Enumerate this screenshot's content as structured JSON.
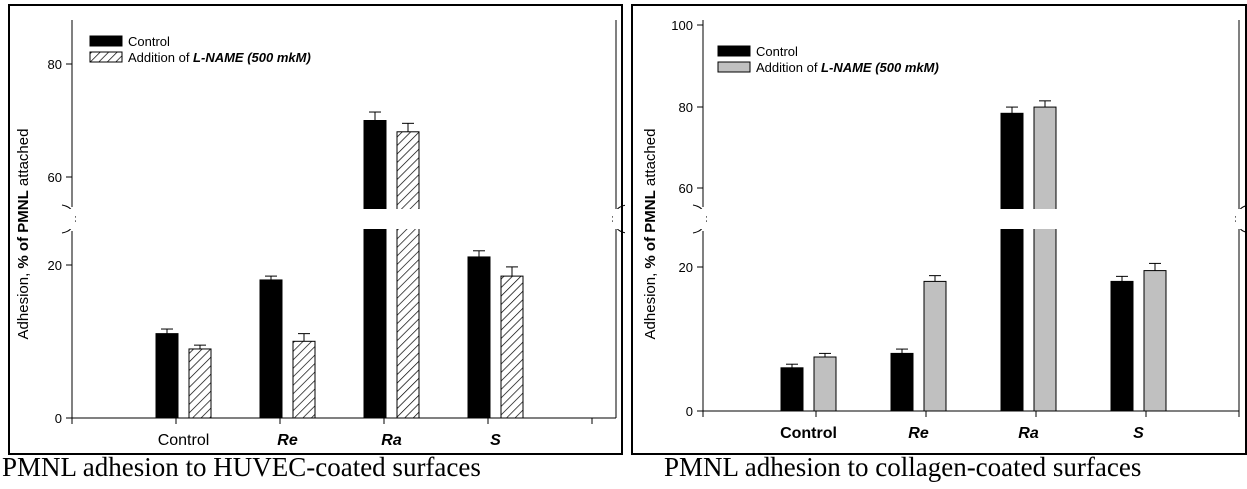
{
  "chart_data": [
    {
      "type": "bar",
      "caption": "PMNL adhesion to HUVEC-coated surfaces",
      "ylabel_prefix": "Adhesion, ",
      "ylabel_bold": "% of PMNL",
      "ylabel_suffix": " attached",
      "categories": [
        "Control",
        "Re",
        "Ra",
        "S"
      ],
      "category_style": "mixed",
      "series": [
        {
          "name": "Control",
          "values": [
            11,
            18,
            70,
            21
          ],
          "errors": [
            0.6,
            0.5,
            1.5,
            0.8
          ],
          "fill": "solid"
        },
        {
          "name_prefix": "Addition of ",
          "name_bold": "L-NAME (500 mkM)",
          "values": [
            9,
            10,
            68,
            18.5
          ],
          "errors": [
            0.5,
            1.0,
            1.5,
            1.2
          ],
          "fill": "hatch"
        }
      ],
      "y_ticks_lower": [
        "0",
        "20"
      ],
      "y_ticks_upper": [
        "60",
        "80"
      ],
      "ylim_lower": [
        0,
        40
      ],
      "ylim_upper": [
        55,
        85
      ],
      "axis_break": true,
      "legend_position": "top-left",
      "colors": {
        "control": "#000000",
        "lname": "#ffffff"
      }
    },
    {
      "type": "bar",
      "caption": "PMNL adhesion to collagen-coated surfaces",
      "ylabel_prefix": "Adhesion, ",
      "ylabel_bold": "% of PMNL",
      "ylabel_suffix": " attached",
      "categories": [
        "Control",
        "Re",
        "Ra",
        "S"
      ],
      "category_style": "bold",
      "series": [
        {
          "name": "Control",
          "values": [
            6,
            8,
            78,
            18
          ],
          "errors": [
            0.5,
            0.6,
            1.5,
            0.7
          ],
          "fill": "solid"
        },
        {
          "name_prefix": "Addition of ",
          "name_bold": "L-NAME (500 mkM)",
          "values": [
            7.5,
            18,
            79.5,
            19.5
          ],
          "errors": [
            0.5,
            0.8,
            1.5,
            1.0
          ],
          "fill": "gray"
        }
      ],
      "y_ticks_lower": [
        "0",
        "20"
      ],
      "y_ticks_upper": [
        "60",
        "80",
        "100"
      ],
      "ylim_lower": [
        0,
        40
      ],
      "ylim_upper": [
        55,
        100
      ],
      "axis_break": true,
      "legend_position": "top-left",
      "colors": {
        "control": "#000000",
        "lname": "#c0c0c0"
      }
    }
  ]
}
